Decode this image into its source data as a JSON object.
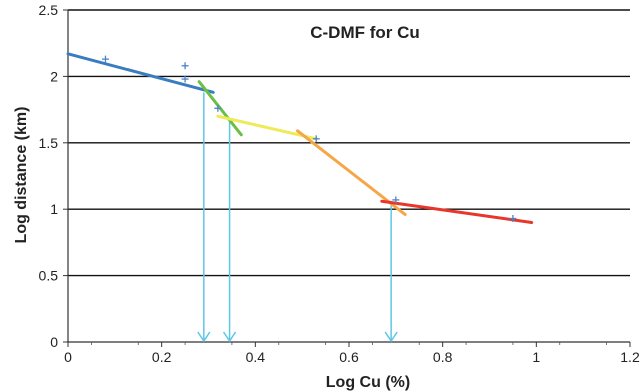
{
  "chart_data": {
    "type": "scatter",
    "title": "C-DMF for Cu",
    "xlabel": "Log Cu (%)",
    "ylabel": "Log distance (km)",
    "xlim": [
      0,
      1.2
    ],
    "ylim": [
      0,
      2.5
    ],
    "x_ticks": [
      "0",
      "0.2",
      "0.4",
      "0.6",
      "0.8",
      "1",
      "1.2"
    ],
    "y_ticks": [
      "0",
      "0.5",
      "1",
      "1.5",
      "2",
      "2.5"
    ],
    "grid": "horizontal",
    "points": [
      {
        "x": 0.08,
        "y": 2.13
      },
      {
        "x": 0.25,
        "y": 2.08
      },
      {
        "x": 0.25,
        "y": 1.98
      },
      {
        "x": 0.32,
        "y": 1.76
      },
      {
        "x": 0.53,
        "y": 1.53
      },
      {
        "x": 0.7,
        "y": 1.07
      },
      {
        "x": 0.95,
        "y": 0.93
      }
    ],
    "fit_lines": [
      {
        "color": "#3a7cc0",
        "x": [
          0.0,
          0.31
        ],
        "y": [
          2.17,
          1.88
        ]
      },
      {
        "color": "#6abf45",
        "x": [
          0.28,
          0.37
        ],
        "y": [
          1.96,
          1.56
        ]
      },
      {
        "color": "#eeea5a",
        "x": [
          0.32,
          0.53
        ],
        "y": [
          1.7,
          1.53
        ]
      },
      {
        "color": "#f7a646",
        "x": [
          0.49,
          0.72
        ],
        "y": [
          1.59,
          0.96
        ]
      },
      {
        "color": "#e8362a",
        "x": [
          0.67,
          0.99
        ],
        "y": [
          1.06,
          0.9
        ]
      }
    ],
    "thresholds": [
      {
        "x": 0.29,
        "y": 1.88,
        "color": "#5ec7e4"
      },
      {
        "x": 0.345,
        "y": 1.67,
        "color": "#5ec7e4"
      },
      {
        "x": 0.69,
        "y": 1.06,
        "color": "#5ec7e4"
      }
    ],
    "point_color": "#4a83c9"
  }
}
